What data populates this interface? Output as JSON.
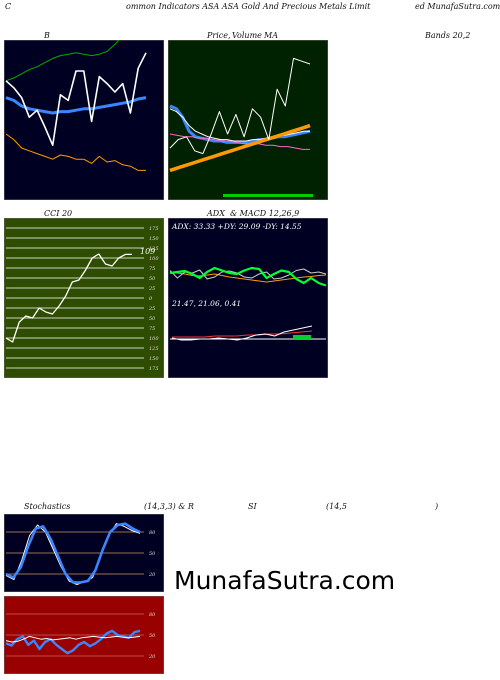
{
  "header": {
    "left": "C",
    "middle": "ommon  Indicators ASA ASA Gold And Precious Metals Limit",
    "right": "ed MunafaSutra.com"
  },
  "panels": {
    "bands": {
      "title_left": "B",
      "title_right": "Bands 20,2"
    },
    "price": {
      "title_a": "Price,",
      "title_b": "Volume",
      "title_c": "MA"
    },
    "cci": {
      "title": "CCI 20",
      "last_label": "109"
    },
    "adx": {
      "title_a": "ADX",
      "title_b": "& MACD 12,26,9",
      "adx_text": "ADX: 33.33  +DY: 29.09  -DY: 14.55",
      "macd_text": "21.47,  21.06,  0.41"
    },
    "stoch": {
      "title_a": "Stochastics",
      "title_b": "(14,3,3) & R",
      "title_c": "SI",
      "title_d": "(14,5",
      "title_e": ")"
    }
  },
  "watermark": "MunafaSutra.com",
  "colors": {
    "navy": "#000022",
    "green_bg": "#002200",
    "olive_bg": "#2e4d00",
    "red_bg": "#990000",
    "blue_line": "#3a86ff",
    "orange_line": "#ff9900"
  },
  "chart_data": [
    {
      "type": "line",
      "name": "bollinger",
      "series": [
        {
          "values": [
            78,
            80,
            83,
            86,
            88,
            91,
            94,
            96,
            97,
            98,
            97,
            96,
            97,
            99,
            104,
            110,
            118,
            124,
            130
          ]
        },
        {
          "values": [
            40,
            36,
            30,
            28,
            26,
            24,
            22,
            25,
            24,
            22,
            22,
            19,
            24,
            20,
            21,
            18,
            17,
            14,
            14
          ]
        },
        {
          "values": [
            66,
            64,
            60,
            58,
            57,
            56,
            55,
            56,
            56,
            57,
            58,
            58,
            59,
            60,
            61,
            62,
            63,
            65,
            66
          ]
        },
        {
          "values": [
            78,
            73,
            66,
            52,
            57,
            45,
            32,
            68,
            64,
            85,
            85,
            49,
            81,
            76,
            70,
            76,
            55,
            87,
            98
          ]
        }
      ]
    },
    {
      "type": "line",
      "name": "price-volume-ma",
      "series": [
        {
          "values": [
            60,
            58,
            52,
            42,
            38,
            37,
            36,
            35,
            35,
            34,
            34,
            34,
            34,
            35,
            36,
            36,
            37,
            38,
            38,
            39,
            40,
            41,
            42
          ]
        },
        {
          "values": [
            58,
            56,
            52,
            46,
            42,
            40,
            38,
            37,
            36,
            36,
            35,
            35,
            35,
            36,
            36,
            37,
            38,
            39,
            39,
            40,
            41,
            42,
            42
          ]
        },
        {
          "values": [
            40,
            39,
            38,
            38,
            37,
            37,
            36,
            35,
            35,
            34,
            33,
            33,
            33,
            32,
            32,
            31,
            31,
            30,
            29,
            29
          ]
        },
        {
          "values": [
            14,
            16,
            18,
            20,
            22,
            24,
            26,
            28,
            30,
            32,
            34,
            36,
            38,
            40,
            42,
            44,
            46
          ]
        },
        {
          "values": [
            30,
            36,
            38,
            28,
            26,
            40,
            56,
            40,
            54,
            38,
            58,
            52,
            36,
            72,
            60,
            94,
            92,
            90
          ]
        }
      ]
    },
    {
      "type": "line",
      "name": "cci",
      "ylim": [
        -175,
        175
      ],
      "yticks": [
        175,
        150,
        125,
        100,
        75,
        50,
        25,
        0,
        -25,
        -50,
        -75,
        -100,
        -125,
        -150,
        -175
      ],
      "ytick_labels": [
        "175",
        "150",
        "125",
        "100",
        "75",
        "50",
        "25",
        "0",
        "25",
        "50",
        "75",
        "100",
        "125",
        "150",
        "175"
      ],
      "values": [
        -100,
        -110,
        -60,
        -45,
        -50,
        -25,
        -35,
        -40,
        -20,
        5,
        40,
        45,
        70,
        100,
        110,
        85,
        80,
        100,
        109,
        109
      ]
    },
    {
      "type": "line",
      "name": "adx",
      "series": [
        {
          "values": [
            50,
            52,
            54,
            48,
            40,
            52,
            60,
            55,
            50,
            48,
            55,
            60,
            58,
            40,
            48,
            55,
            52,
            38,
            30,
            40,
            30,
            25
          ]
        },
        {
          "values": [
            55,
            40,
            52,
            50,
            56,
            38,
            42,
            52,
            54,
            50,
            42,
            40,
            48,
            52,
            38,
            40,
            46,
            55,
            58,
            50,
            52,
            48
          ]
        },
        {
          "values": [
            52,
            50,
            48,
            45,
            44,
            46,
            48,
            45,
            42,
            40,
            38,
            36,
            34,
            32,
            34,
            36,
            38,
            40,
            42,
            43,
            45,
            46
          ]
        }
      ]
    },
    {
      "type": "line",
      "name": "macd",
      "series": [
        {
          "values": [
            1,
            1,
            1,
            1,
            2,
            2,
            2,
            3,
            3,
            4,
            4,
            5,
            6,
            7
          ]
        },
        {
          "values": [
            0,
            -2,
            -2,
            -1,
            -1,
            0,
            -1,
            -2,
            0,
            3,
            4,
            2,
            6,
            8,
            10,
            12
          ]
        }
      ]
    },
    {
      "type": "line",
      "name": "stochastics",
      "ylim": [
        0,
        100
      ],
      "yticks": [
        80,
        50,
        20
      ],
      "ytick_labels": [
        "80",
        "50",
        "20"
      ],
      "series": [
        {
          "values": [
            20,
            15,
            30,
            60,
            85,
            88,
            70,
            45,
            20,
            8,
            8,
            10,
            25,
            55,
            80,
            90,
            92,
            85,
            80
          ]
        },
        {
          "values": [
            18,
            12,
            40,
            75,
            90,
            80,
            55,
            30,
            10,
            5,
            9,
            15,
            45,
            75,
            92,
            88,
            82,
            78
          ]
        }
      ]
    },
    {
      "type": "line",
      "name": "rsi",
      "ylim": [
        0,
        100
      ],
      "yticks": [
        80,
        50,
        20
      ],
      "ytick_labels": [
        "80",
        "50",
        "20"
      ],
      "series": [
        {
          "values": [
            42,
            40,
            41,
            44,
            48,
            46,
            44,
            45,
            43,
            44,
            45,
            46,
            44,
            46,
            47,
            48,
            47,
            46,
            47,
            48,
            47,
            46,
            47,
            48
          ]
        },
        {
          "values": [
            38,
            35,
            44,
            48,
            36,
            42,
            30,
            40,
            44,
            36,
            30,
            24,
            28,
            36,
            40,
            34,
            38,
            44,
            52,
            56,
            50,
            48,
            46,
            54,
            56
          ]
        }
      ]
    }
  ]
}
